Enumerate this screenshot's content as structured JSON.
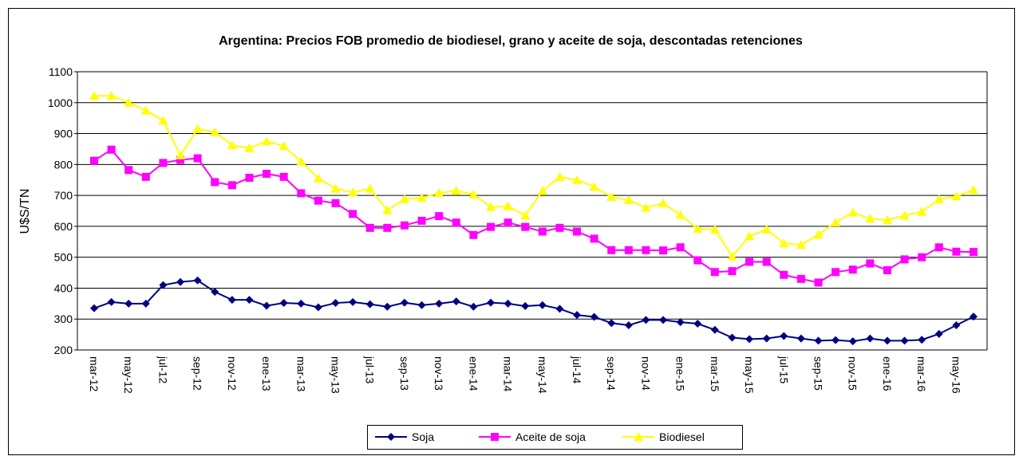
{
  "chart_data": {
    "type": "line",
    "title": "Argentina: Precios FOB promedio de biodiesel, grano y aceite de soja, descontadas retenciones",
    "y_label": "U$S/TN",
    "categories": [
      "mar-12",
      null,
      "may-12",
      null,
      "jul-12",
      null,
      "sep-12",
      null,
      "nov-12",
      null,
      "ene-13",
      null,
      "mar-13",
      null,
      "may-13",
      null,
      "jul-13",
      null,
      "sep-13",
      null,
      "nov-13",
      null,
      "ene-14",
      null,
      "mar-14",
      null,
      "may-14",
      null,
      "jul-14",
      null,
      "sep-14",
      null,
      "nov-14",
      null,
      "ene-15",
      null,
      "mar-15",
      null,
      "may-15",
      null,
      "jul-15",
      null,
      "sep-15",
      null,
      "nov-15",
      null,
      "ene-16",
      null,
      "mar-16",
      null,
      "may-16",
      null
    ],
    "series": [
      {
        "name": "Soja",
        "color": "#000080",
        "marker": "diamond",
        "values": [
          335,
          355,
          350,
          350,
          410,
          420,
          425,
          388,
          362,
          362,
          343,
          352,
          350,
          338,
          352,
          355,
          348,
          340,
          353,
          345,
          350,
          357,
          340,
          353,
          350,
          342,
          345,
          333,
          313,
          307,
          287,
          280,
          297,
          297,
          290,
          285,
          265,
          240,
          235,
          237,
          245,
          237,
          230,
          232,
          228,
          237,
          230,
          230,
          233,
          252,
          280,
          308
        ]
      },
      {
        "name": "Aceite de soja",
        "color": "#ff00ff",
        "marker": "square",
        "values": [
          812,
          848,
          782,
          760,
          805,
          815,
          820,
          743,
          733,
          757,
          770,
          760,
          707,
          683,
          675,
          640,
          595,
          595,
          603,
          618,
          633,
          612,
          572,
          598,
          612,
          598,
          583,
          595,
          583,
          560,
          523,
          523,
          523,
          522,
          532,
          490,
          452,
          455,
          485,
          485,
          443,
          430,
          418,
          452,
          460,
          480,
          458,
          493,
          500,
          532,
          518,
          517
        ]
      },
      {
        "name": "Biodiesel",
        "color": "#ffff00",
        "marker": "triangle",
        "values": [
          1022,
          1022,
          1000,
          975,
          942,
          830,
          915,
          905,
          862,
          853,
          875,
          860,
          810,
          755,
          722,
          710,
          722,
          652,
          688,
          692,
          708,
          715,
          703,
          663,
          665,
          635,
          715,
          760,
          750,
          728,
          695,
          685,
          660,
          675,
          637,
          592,
          590,
          503,
          568,
          590,
          545,
          540,
          573,
          613,
          645,
          625,
          620,
          635,
          647,
          688,
          697,
          718
        ]
      }
    ],
    "ylim": [
      200,
      1100
    ],
    "yticks": [
      200,
      300,
      400,
      500,
      600,
      700,
      800,
      900,
      1000,
      1100
    ],
    "grid": true
  }
}
